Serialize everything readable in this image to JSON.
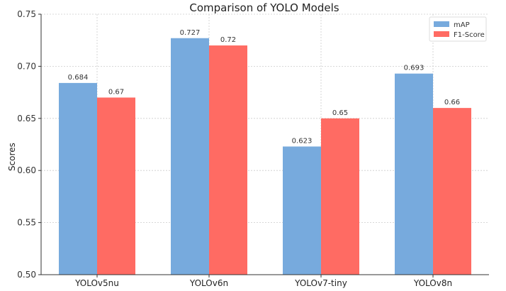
{
  "chart_data": {
    "type": "bar",
    "title": "Comparison of YOLO Models",
    "xlabel": "",
    "ylabel": "Scores",
    "ylim": [
      0.5,
      0.75
    ],
    "yticks": [
      "0.50",
      "0.55",
      "0.60",
      "0.65",
      "0.70",
      "0.75"
    ],
    "grid": true,
    "legend_position": "top-right",
    "categories": [
      "YOLOv5nu",
      "YOLOv6n",
      "YOLOv7-tiny",
      "YOLOv8n"
    ],
    "series": [
      {
        "name": "mAP",
        "color": "#77aadd",
        "values": [
          0.684,
          0.727,
          0.623,
          0.693
        ],
        "labels": [
          "0.684",
          "0.727",
          "0.623",
          "0.693"
        ]
      },
      {
        "name": "F1-Score",
        "color": "#ff6b63",
        "values": [
          0.67,
          0.72,
          0.65,
          0.66
        ],
        "labels": [
          "0.67",
          "0.72",
          "0.65",
          "0.66"
        ]
      }
    ]
  }
}
